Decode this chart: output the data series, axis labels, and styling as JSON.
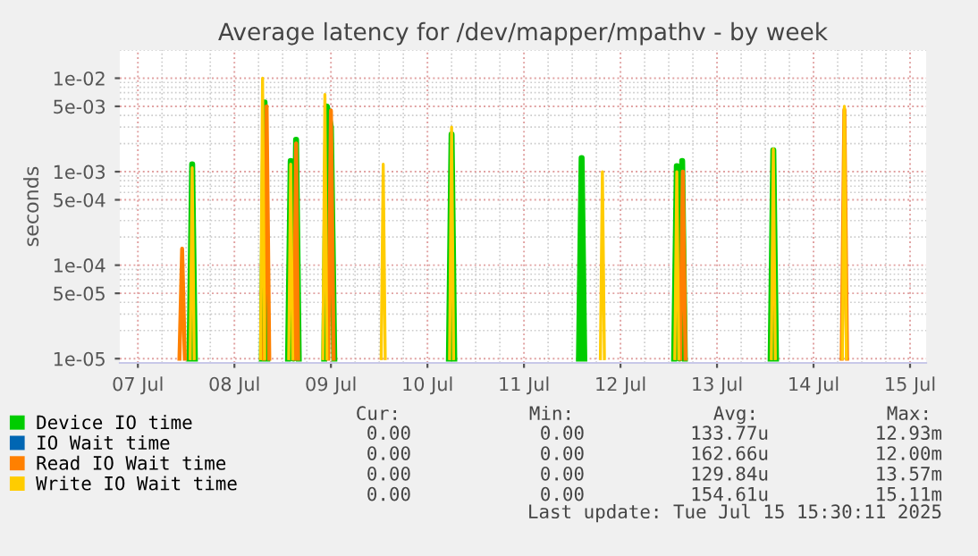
{
  "chart_data": {
    "type": "line",
    "title": "Average latency for /dev/mapper/mpathv - by week",
    "ylabel": "seconds",
    "log": "y",
    "grid": true,
    "legend": "bottom",
    "marker": "none",
    "line_style": "solid",
    "xlim": [
      "2025-07-06T19:30",
      "2025-07-15T04:00"
    ],
    "xticks": [
      {
        "value": "2025-07-07",
        "label": "07 Jul"
      },
      {
        "value": "2025-07-08",
        "label": "08 Jul"
      },
      {
        "value": "2025-07-09",
        "label": "09 Jul"
      },
      {
        "value": "2025-07-10",
        "label": "10 Jul"
      },
      {
        "value": "2025-07-11",
        "label": "11 Jul"
      },
      {
        "value": "2025-07-12",
        "label": "12 Jul"
      },
      {
        "value": "2025-07-13",
        "label": "13 Jul"
      },
      {
        "value": "2025-07-14",
        "label": "14 Jul"
      },
      {
        "value": "2025-07-15",
        "label": "15 Jul"
      }
    ],
    "ylim": [
      9e-06,
      0.02
    ],
    "yticks": [
      {
        "value": 1e-05,
        "label": "1e-05"
      },
      {
        "value": 5e-05,
        "label": "5e-05"
      },
      {
        "value": 0.0001,
        "label": "1e-04"
      },
      {
        "value": 0.0005,
        "label": "5e-04"
      },
      {
        "value": 0.001,
        "label": "1e-03"
      },
      {
        "value": 0.005,
        "label": "5e-03"
      },
      {
        "value": 0.01,
        "label": "1e-02"
      }
    ],
    "series": [
      {
        "name": "Device IO time",
        "color": "#00cc00",
        "x": [
          "2025-07-07T12:50",
          "2025-07-07T13:30",
          "2025-07-07T14:10",
          "2025-07-07T20:00",
          "2025-07-08T06:50",
          "2025-07-08T07:30",
          "2025-07-08T08:10",
          "2025-07-08T10:00",
          "2025-07-08T13:20",
          "2025-07-08T14:00",
          "2025-07-08T14:40",
          "2025-07-08T15:20",
          "2025-07-08T16:00",
          "2025-07-08T19:00",
          "2025-07-08T22:20",
          "2025-07-08T23:00",
          "2025-07-09T00:00",
          "2025-07-09T00:50",
          "2025-07-09T12:00",
          "2025-07-10T05:20",
          "2025-07-10T06:00",
          "2025-07-10T06:40",
          "2025-07-11T00:00",
          "2025-07-11T13:40",
          "2025-07-11T14:20",
          "2025-07-11T15:00",
          "2025-07-12T00:00",
          "2025-07-12T13:20",
          "2025-07-12T14:00",
          "2025-07-12T14:40",
          "2025-07-12T15:20",
          "2025-07-12T16:00",
          "2025-07-13T00:00",
          "2025-07-13T13:20",
          "2025-07-13T14:00",
          "2025-07-13T14:40"
        ],
        "values": [
          1e-05,
          0.0012,
          1e-05,
          null,
          1e-05,
          0.0055,
          1e-05,
          null,
          1e-05,
          0.0013,
          1e-05,
          0.0022,
          1e-05,
          null,
          1e-05,
          0.005,
          0.003,
          1e-05,
          null,
          1e-05,
          0.0025,
          1e-05,
          null,
          1e-05,
          0.0014,
          1e-05,
          null,
          1e-05,
          0.00115,
          1e-05,
          0.0013,
          1e-05,
          null,
          1e-05,
          0.0017,
          1e-05
        ]
      },
      {
        "name": "IO Wait time",
        "color": "#0066b3"
      },
      {
        "name": "Read IO Wait time",
        "color": "#ff8000",
        "x": [
          "2025-07-07T10:20",
          "2025-07-07T11:00",
          "2025-07-07T11:40",
          "2025-07-07T20:00",
          "2025-07-08T07:20",
          "2025-07-08T08:00",
          "2025-07-08T08:40",
          "2025-07-08T12:00",
          "2025-07-08T14:50",
          "2025-07-08T15:20",
          "2025-07-08T15:50",
          "2025-07-08T19:00",
          "2025-07-08T23:20",
          "2025-07-09T00:00",
          "2025-07-09T00:40",
          "2025-07-10T12:00",
          "2025-07-12T14:50",
          "2025-07-12T15:30",
          "2025-07-12T16:10",
          "2025-07-13T12:00",
          "2025-07-14T07:00",
          "2025-07-14T07:40",
          "2025-07-14T08:20"
        ],
        "values": [
          1e-05,
          0.00015,
          1e-05,
          null,
          1e-05,
          0.005,
          1e-05,
          null,
          1e-05,
          0.002,
          1e-05,
          null,
          1e-05,
          0.0045,
          1e-05,
          null,
          1e-05,
          0.001,
          1e-05,
          null,
          1e-05,
          0.0046,
          1e-05
        ]
      },
      {
        "name": "Write IO Wait time",
        "color": "#ffcc00",
        "x": [
          "2025-07-07T13:00",
          "2025-07-07T13:30",
          "2025-07-07T14:00",
          "2025-07-07T20:00",
          "2025-07-08T06:30",
          "2025-07-08T07:00",
          "2025-07-08T07:30",
          "2025-07-08T10:00",
          "2025-07-08T13:30",
          "2025-07-08T14:00",
          "2025-07-08T14:30",
          "2025-07-08T18:00",
          "2025-07-08T22:00",
          "2025-07-08T22:30",
          "2025-07-08T23:00",
          "2025-07-09T06:00",
          "2025-07-09T12:30",
          "2025-07-09T13:00",
          "2025-07-09T13:30",
          "2025-07-09T20:00",
          "2025-07-10T05:30",
          "2025-07-10T06:00",
          "2025-07-10T06:30",
          "2025-07-11T00:00",
          "2025-07-11T19:00",
          "2025-07-11T19:30",
          "2025-07-11T20:00",
          "2025-07-12T06:00",
          "2025-07-12T13:30",
          "2025-07-12T14:00",
          "2025-07-12T14:30",
          "2025-07-13T00:00",
          "2025-07-13T13:30",
          "2025-07-13T14:00",
          "2025-07-13T14:30",
          "2025-07-14T00:00",
          "2025-07-14T07:10",
          "2025-07-14T07:40",
          "2025-07-14T08:10"
        ],
        "values": [
          1e-05,
          0.0011,
          1e-05,
          null,
          1e-05,
          0.01,
          1e-05,
          null,
          1e-05,
          0.0012,
          1e-05,
          null,
          1e-05,
          0.0067,
          1e-05,
          null,
          1e-05,
          0.0012,
          1e-05,
          null,
          1e-05,
          0.003,
          1e-05,
          null,
          1e-05,
          0.001,
          1e-05,
          null,
          1e-05,
          0.001,
          1e-05,
          null,
          1e-05,
          0.00175,
          1e-05,
          null,
          1e-05,
          0.005,
          1e-05
        ]
      }
    ],
    "annotations": [
      "Cur:",
      "Min:",
      "Avg:",
      "Max:",
      "0.00",
      "0.00",
      "133.77u",
      "12.93m",
      "0.00",
      "0.00",
      "162.66u",
      "12.00m",
      "0.00",
      "0.00",
      "129.84u",
      "13.57m",
      "0.00",
      "0.00",
      "154.61u",
      "15.11m",
      "Last update: Tue Jul 15 15:30:11 2025"
    ]
  }
}
